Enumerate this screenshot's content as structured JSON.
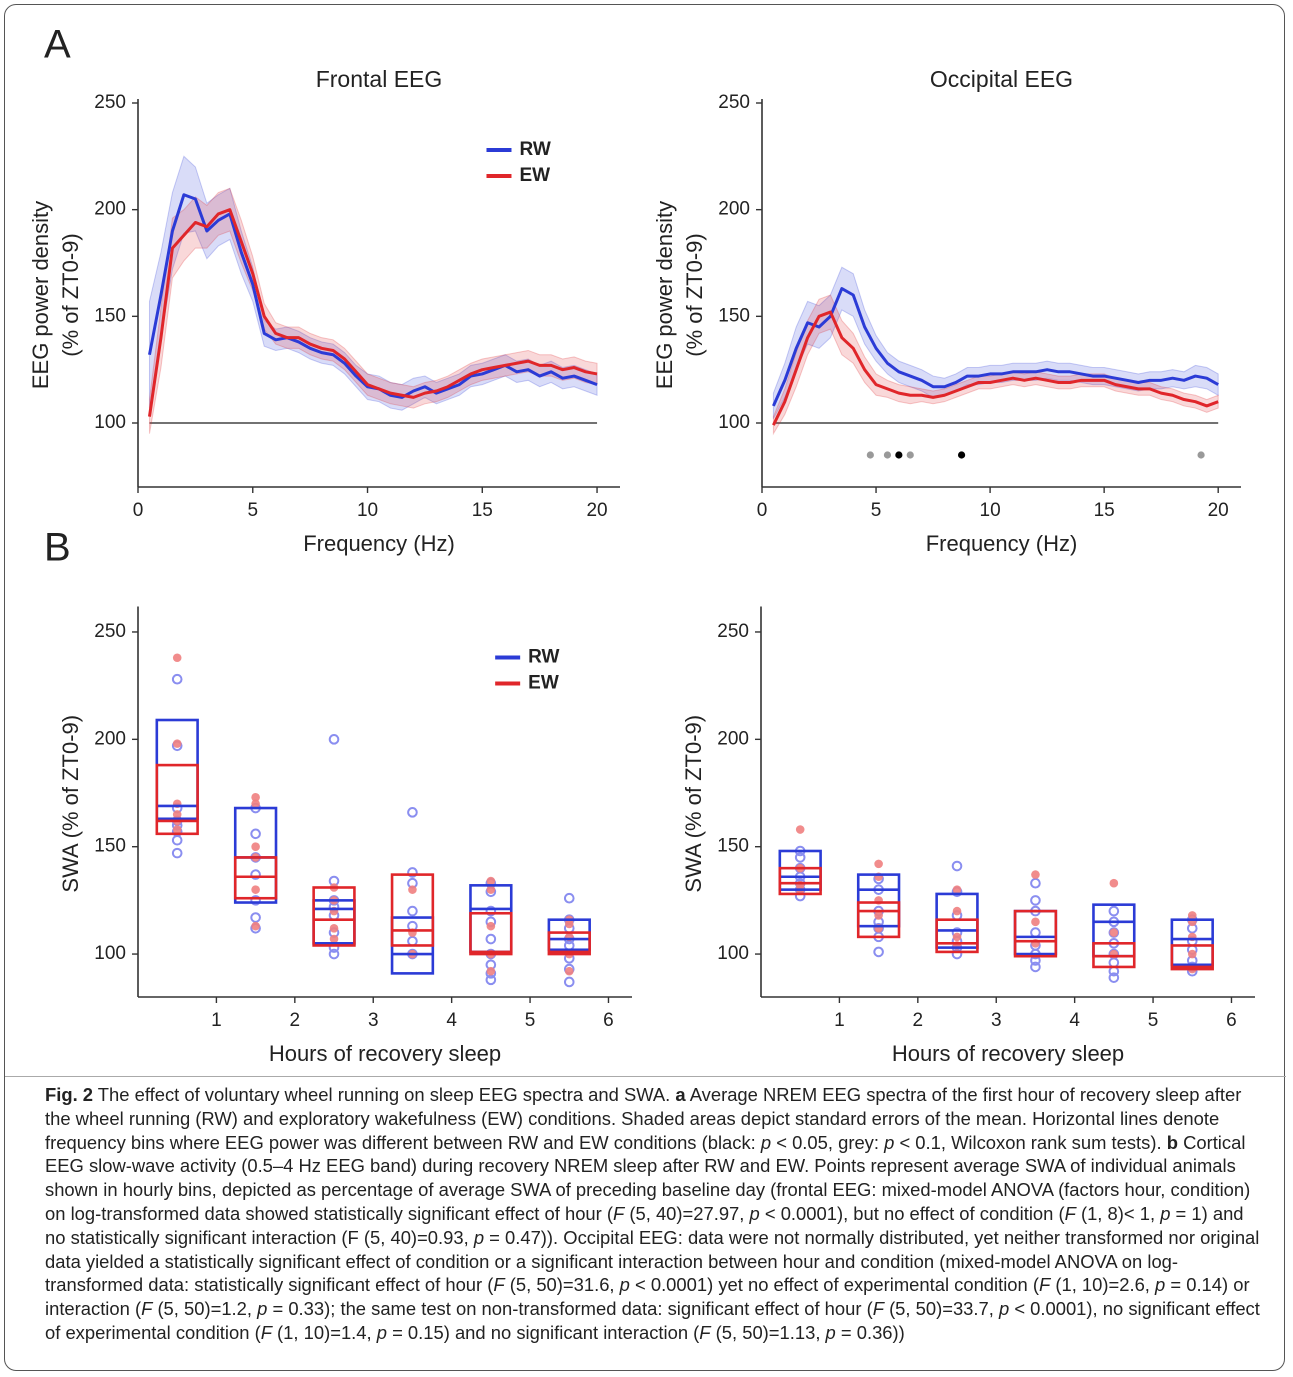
{
  "panel_labels": [
    "A",
    "B"
  ],
  "chart_data": [
    {
      "type": "line",
      "title": "Frontal EEG",
      "xlabel": "Frequency (Hz)",
      "ylabel": [
        "EEG power density",
        "(% of ZT0-9)"
      ],
      "xlim": [
        0,
        21
      ],
      "ylim": [
        70,
        250
      ],
      "xticks": [
        0,
        5,
        10,
        15,
        20
      ],
      "yticks": [
        100,
        150,
        200,
        250
      ],
      "reference_line": 100,
      "legend": "upper right",
      "x": [
        0.5,
        1,
        1.5,
        2,
        2.5,
        3,
        3.5,
        4,
        4.5,
        5,
        5.5,
        6,
        6.5,
        7,
        7.5,
        8,
        8.5,
        9,
        9.5,
        10,
        10.5,
        11,
        11.5,
        12,
        12.5,
        13,
        13.5,
        14,
        14.5,
        15,
        15.5,
        16,
        16.5,
        17,
        17.5,
        18,
        18.5,
        19,
        19.5,
        20
      ],
      "series": [
        {
          "name": "RW",
          "color": "#2b3bd6",
          "values": [
            132,
            160,
            190,
            207,
            205,
            190,
            195,
            198,
            180,
            165,
            142,
            139,
            140,
            138,
            135,
            133,
            132,
            128,
            122,
            117,
            116,
            113,
            112,
            115,
            117,
            114,
            116,
            118,
            122,
            123,
            125,
            127,
            124,
            125,
            122,
            124,
            121,
            122,
            120,
            118
          ],
          "errors": [
            25,
            20,
            18,
            18,
            15,
            13,
            12,
            12,
            10,
            8,
            6,
            5,
            5,
            5,
            5,
            5,
            5,
            5,
            5,
            6,
            6,
            6,
            6,
            6,
            5,
            5,
            5,
            5,
            5,
            5,
            5,
            5,
            5,
            5,
            5,
            5,
            5,
            5,
            5,
            5
          ]
        },
        {
          "name": "EW",
          "color": "#e0262a",
          "values": [
            103,
            140,
            182,
            188,
            194,
            192,
            198,
            200,
            185,
            170,
            150,
            142,
            140,
            140,
            137,
            135,
            134,
            130,
            124,
            118,
            116,
            114,
            113,
            112,
            114,
            115,
            117,
            120,
            123,
            125,
            126,
            127,
            128,
            129,
            127,
            127,
            125,
            126,
            124,
            123
          ],
          "errors": [
            8,
            14,
            14,
            12,
            12,
            10,
            10,
            10,
            10,
            8,
            6,
            5,
            5,
            5,
            5,
            5,
            5,
            5,
            5,
            5,
            5,
            5,
            5,
            5,
            5,
            5,
            5,
            5,
            5,
            5,
            5,
            5,
            5,
            5,
            5,
            5,
            5,
            5,
            5,
            5
          ]
        }
      ]
    },
    {
      "type": "line",
      "title": "Occipital EEG",
      "xlabel": "Frequency (Hz)",
      "ylabel": [
        "EEG power density",
        "(% of ZT0-9)"
      ],
      "xlim": [
        0,
        21
      ],
      "ylim": [
        70,
        250
      ],
      "xticks": [
        0,
        5,
        10,
        15,
        20
      ],
      "yticks": [
        100,
        150,
        200,
        250
      ],
      "reference_line": 100,
      "x": [
        0.5,
        1,
        1.5,
        2,
        2.5,
        3,
        3.5,
        4,
        4.5,
        5,
        5.5,
        6,
        6.5,
        7,
        7.5,
        8,
        8.5,
        9,
        9.5,
        10,
        10.5,
        11,
        11.5,
        12,
        12.5,
        13,
        13.5,
        14,
        14.5,
        15,
        15.5,
        16,
        16.5,
        17,
        17.5,
        18,
        18.5,
        19,
        19.5,
        20
      ],
      "series": [
        {
          "color": "#2b3bd6",
          "values": [
            108,
            120,
            135,
            147,
            145,
            150,
            163,
            160,
            145,
            135,
            128,
            124,
            122,
            120,
            117,
            117,
            119,
            122,
            122,
            123,
            123,
            124,
            124,
            124,
            125,
            124,
            124,
            123,
            122,
            122,
            121,
            120,
            119,
            120,
            120,
            121,
            120,
            122,
            121,
            118
          ],
          "errors": [
            6,
            8,
            10,
            10,
            10,
            10,
            10,
            10,
            8,
            6,
            5,
            5,
            5,
            5,
            5,
            4,
            4,
            4,
            4,
            4,
            4,
            4,
            4,
            4,
            4,
            4,
            4,
            4,
            4,
            4,
            4,
            4,
            4,
            4,
            4,
            4,
            4,
            5,
            5,
            5
          ]
        },
        {
          "color": "#e0262a",
          "values": [
            99,
            110,
            125,
            140,
            150,
            152,
            140,
            135,
            125,
            118,
            116,
            114,
            113,
            113,
            112,
            113,
            115,
            117,
            119,
            119,
            120,
            121,
            120,
            121,
            120,
            119,
            119,
            120,
            120,
            120,
            118,
            117,
            116,
            116,
            114,
            113,
            111,
            110,
            108,
            110
          ],
          "errors": [
            4,
            6,
            8,
            8,
            8,
            8,
            8,
            7,
            6,
            5,
            4,
            4,
            4,
            3,
            3,
            3,
            3,
            3,
            3,
            3,
            3,
            3,
            3,
            3,
            3,
            3,
            3,
            3,
            3,
            3,
            3,
            3,
            3,
            3,
            3,
            3,
            3,
            3,
            3,
            3
          ]
        }
      ],
      "markers": {
        "x": [
          4.75,
          5.5,
          6,
          6.5,
          8.75,
          19.25
        ],
        "y": [
          85,
          85,
          85,
          85,
          85,
          85
        ],
        "colors": [
          "#999999",
          "#999999",
          "#000000",
          "#999999",
          "#000000",
          "#999999"
        ]
      }
    },
    {
      "type": "box",
      "xlabel": "Hours of recovery sleep",
      "ylabel": [
        "SWA (% of ZT0-9)"
      ],
      "xlim": [
        0,
        6.3
      ],
      "ylim": [
        80,
        260
      ],
      "xticks": [
        1,
        2,
        3,
        4,
        5,
        6
      ],
      "yticks": [
        100,
        150,
        200,
        250
      ],
      "legend": "upper right",
      "x": [
        0.5,
        1.5,
        2.5,
        3.5,
        4.5,
        5.5
      ],
      "series": [
        {
          "name": "RW",
          "color": "#2b3bd6",
          "point_color": "#8a8ef0",
          "q1": [
            163,
            124,
            105,
            91,
            101,
            102
          ],
          "median": [
            169,
            145,
            121,
            100,
            121,
            107
          ],
          "q3": [
            209,
            168,
            125,
            117,
            132,
            116
          ],
          "points": [
            [
              228,
              197,
              168,
              162,
              160,
              157,
              153,
              147
            ],
            [
              168,
              156,
              145,
              137,
              125,
              117,
              112
            ],
            [
              200,
              134,
              125,
              122,
              118,
              110,
              103,
              100
            ],
            [
              166,
              138,
              133,
              120,
              113,
              106,
              100
            ],
            [
              133,
              129,
              120,
              115,
              107,
              100,
              95,
              91,
              88
            ],
            [
              126,
              116,
              112,
              107,
              104,
              98,
              93,
              87
            ]
          ]
        },
        {
          "name": "EW",
          "color": "#e0262a",
          "point_color": "#f08080",
          "q1": [
            156,
            126,
            104,
            104,
            100,
            100
          ],
          "median": [
            162,
            136,
            116,
            111,
            101,
            101
          ],
          "q3": [
            188,
            145,
            131,
            137,
            119,
            110
          ],
          "points": [
            [
              238,
              198,
              170,
              165,
              162,
              158
            ],
            [
              173,
              170,
              150,
              145,
              130,
              113
            ],
            [
              131,
              125,
              120,
              112,
              107
            ],
            [
              130,
              110,
              100
            ],
            [
              134,
              130,
              113,
              100,
              92
            ],
            [
              116,
              114,
              108,
              100,
              92
            ]
          ]
        }
      ]
    },
    {
      "type": "box",
      "xlabel": "Hours of recovery sleep",
      "ylabel": [
        "SWA (% of ZT0-9)"
      ],
      "xlim": [
        0,
        6.3
      ],
      "ylim": [
        80,
        260
      ],
      "xticks": [
        1,
        2,
        3,
        4,
        5,
        6
      ],
      "yticks": [
        100,
        150,
        200,
        250
      ],
      "x": [
        0.5,
        1.5,
        2.5,
        3.5,
        4.5,
        5.5
      ],
      "series": [
        {
          "color": "#2b3bd6",
          "point_color": "#8a8ef0",
          "q1": [
            130,
            113,
            103,
            100,
            99,
            95
          ],
          "median": [
            136,
            130,
            111,
            108,
            115,
            107
          ],
          "q3": [
            148,
            137,
            128,
            120,
            123,
            116
          ],
          "points": [
            [
              148,
              145,
              140,
              136,
              133,
              130,
              127
            ],
            [
              135,
              130,
              120,
              115,
              112,
              108,
              101
            ],
            [
              141,
              129,
              118,
              110,
              106,
              103,
              100
            ],
            [
              133,
              125,
              120,
              110,
              104,
              100,
              97,
              94
            ],
            [
              120,
              115,
              110,
              105,
              100,
              96,
              92,
              89
            ],
            [
              116,
              112,
              106,
              102,
              97,
              94,
              92
            ]
          ]
        },
        {
          "color": "#e0262a",
          "point_color": "#f08080",
          "q1": [
            128,
            108,
            101,
            99,
            94,
            93
          ],
          "median": [
            133,
            120,
            105,
            106,
            99,
            94
          ],
          "q3": [
            140,
            124,
            116,
            120,
            105,
            104
          ],
          "points": [
            [
              158,
              140,
              132,
              130
            ],
            [
              142,
              136,
              125,
              118,
              112
            ],
            [
              130,
              120,
              108,
              104
            ],
            [
              137,
              115,
              105
            ],
            [
              133,
              110,
              100
            ],
            [
              118,
              115,
              108,
              100,
              93
            ]
          ]
        }
      ]
    }
  ],
  "caption": [
    {
      "text": "Fig. 2",
      "style": "bold"
    },
    {
      "text": " The effect of voluntary wheel running on sleep EEG spectra and SWA. "
    },
    {
      "text": "a",
      "style": "bold"
    },
    {
      "text": " Average NREM EEG spectra of the first hour of recovery sleep after the wheel running (RW) and exploratory wakefulness (EW) conditions. Shaded areas depict standard errors of the mean. Horizontal lines denote frequency bins where EEG power was different between RW and EW conditions (black: "
    },
    {
      "text": "p",
      "style": "italic"
    },
    {
      "text": " < 0.05, grey: "
    },
    {
      "text": "p",
      "style": "italic"
    },
    {
      "text": " < 0.1, Wilcoxon rank sum tests). "
    },
    {
      "text": "b",
      "style": "bold"
    },
    {
      "text": " Cortical EEG slow-wave activity (0.5–4 Hz EEG band) during recovery NREM sleep after RW and EW. Points represent average SWA of individual animals shown in hourly bins, depicted as percentage of average SWA of preceding baseline day (frontal EEG: mixed-model ANOVA (factors hour, condition) on log-transformed data showed statistically significant effect of hour ("
    },
    {
      "text": "F",
      "style": "italic"
    },
    {
      "text": " (5, 40)=27.97, "
    },
    {
      "text": "p",
      "style": "italic"
    },
    {
      "text": " < 0.0001), but no effect of condition ("
    },
    {
      "text": "F",
      "style": "italic"
    },
    {
      "text": " (1, 8)< 1, "
    },
    {
      "text": "p",
      "style": "italic"
    },
    {
      "text": " = 1) and no statistically significant interaction (F (5, 40)=0.93, "
    },
    {
      "text": "p",
      "style": "italic"
    },
    {
      "text": " = 0.47)). Occipital EEG: data were not normally distributed, yet neither transformed nor original data yielded a statistically significant effect of condition or a significant interaction between hour and condition (mixed-model ANOVA on log-transformed data: statistically significant effect of hour ("
    },
    {
      "text": "F",
      "style": "italic"
    },
    {
      "text": " (5, 50)=31.6, "
    },
    {
      "text": "p",
      "style": "italic"
    },
    {
      "text": " < 0.0001) yet no effect of experimental condition ("
    },
    {
      "text": "F",
      "style": "italic"
    },
    {
      "text": " (1, 10)=2.6, "
    },
    {
      "text": "p",
      "style": "italic"
    },
    {
      "text": " = 0.14) or interaction ("
    },
    {
      "text": "F",
      "style": "italic"
    },
    {
      "text": " (5, 50)=1.2, "
    },
    {
      "text": "p",
      "style": "italic"
    },
    {
      "text": " = 0.33); the same test on non-transformed data: significant effect of hour ("
    },
    {
      "text": "F",
      "style": "italic"
    },
    {
      "text": " (5, 50)=33.7, "
    },
    {
      "text": "p",
      "style": "italic"
    },
    {
      "text": " < 0.0001), no significant effect of experimental condition ("
    },
    {
      "text": "F",
      "style": "italic"
    },
    {
      "text": " (1, 10)=1.4, "
    },
    {
      "text": "p",
      "style": "italic"
    },
    {
      "text": " = 0.15) and no significant interaction ("
    },
    {
      "text": "F",
      "style": "italic"
    },
    {
      "text": " (5, 50)=1.13, "
    },
    {
      "text": "p",
      "style": "italic"
    },
    {
      "text": " = 0.36))"
    }
  ]
}
